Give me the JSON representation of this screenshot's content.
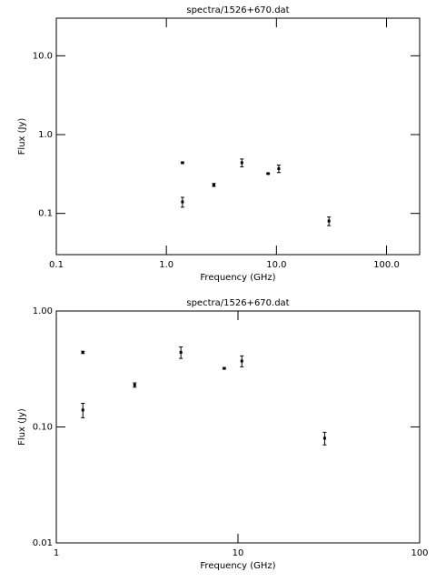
{
  "chart_data": [
    {
      "type": "errorbar",
      "title": "spectra/1526+670.dat",
      "xlabel": "Frequency (GHz)",
      "ylabel": "Flux (Jy)",
      "x": [
        1.4,
        1.4,
        2.7,
        4.85,
        8.4,
        10.5,
        30
      ],
      "values": [
        0.44,
        0.14,
        0.23,
        0.44,
        0.32,
        0.37,
        0.08
      ],
      "errors": [
        0.01,
        0.02,
        0.01,
        0.05,
        0.005,
        0.04,
        0.01
      ],
      "color": "#000000",
      "xscale": "log",
      "yscale": "log",
      "xlim": [
        0.1,
        200
      ],
      "ylim": [
        0.03,
        30
      ],
      "xticks": [
        0.1,
        {
          "value": 1,
          "label": "1.0"
        },
        {
          "value": 10,
          "label": "10.0"
        },
        {
          "value": 100,
          "label": "100.0"
        }
      ],
      "yticks": [
        0.1,
        {
          "value": 1,
          "label": "1.0"
        },
        {
          "value": 10,
          "label": "10.0"
        }
      ]
    },
    {
      "type": "errorbar",
      "title": "spectra/1526+670.dat",
      "xlabel": "Frequency (GHz)",
      "ylabel": "Flux (Jy)",
      "x": [
        1.4,
        1.4,
        2.7,
        4.85,
        8.4,
        10.5,
        30
      ],
      "values": [
        0.44,
        0.14,
        0.23,
        0.44,
        0.32,
        0.37,
        0.08
      ],
      "errors": [
        0.01,
        0.02,
        0.01,
        0.05,
        0.005,
        0.04,
        0.01
      ],
      "color": "#000000",
      "xscale": "log",
      "yscale": "log",
      "xlim": [
        1,
        100
      ],
      "ylim": [
        0.01,
        1
      ],
      "xticks": [
        1,
        10,
        100
      ],
      "yticks": [
        0.01,
        {
          "value": 0.1,
          "label": "0.10"
        },
        {
          "value": 1,
          "label": "1.00"
        }
      ]
    }
  ]
}
